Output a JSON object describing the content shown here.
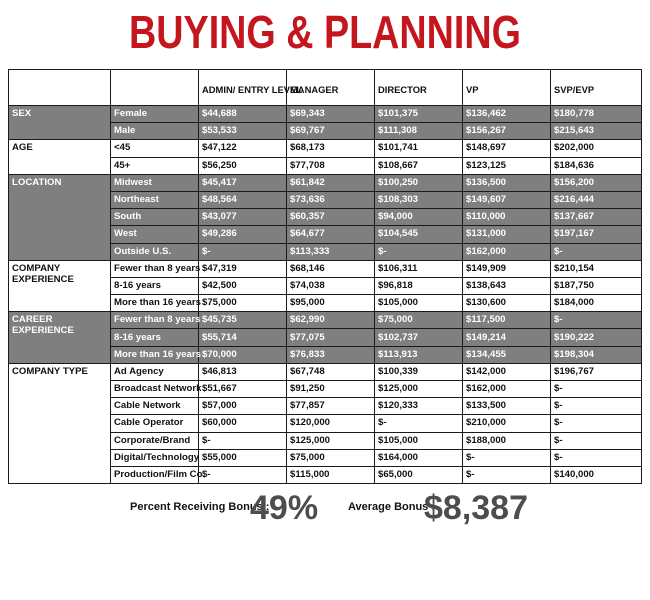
{
  "title": "BUYING & PLANNING",
  "columns": [
    "ADMIN/ ENTRY LEVEL",
    "MANAGER",
    "DIRECTOR",
    "VP",
    "SVP/EVP"
  ],
  "groups": [
    {
      "category": "SEX",
      "shaded": true,
      "rows": [
        {
          "label": "Female",
          "values": [
            "$44,688",
            "$69,343",
            "$101,375",
            "$136,462",
            "$180,778"
          ]
        },
        {
          "label": "Male",
          "values": [
            "$53,533",
            "$69,767",
            "$111,308",
            "$156,267",
            "$215,643"
          ]
        }
      ]
    },
    {
      "category": "AGE",
      "shaded": false,
      "rows": [
        {
          "label": "<45",
          "values": [
            "$47,122",
            "$68,173",
            "$101,741",
            "$148,697",
            "$202,000"
          ]
        },
        {
          "label": "45+",
          "values": [
            "$56,250",
            "$77,708",
            "$108,667",
            "$123,125",
            "$184,636"
          ]
        }
      ]
    },
    {
      "category": "LOCATION",
      "shaded": true,
      "rows": [
        {
          "label": "Midwest",
          "values": [
            "$45,417",
            "$61,842",
            "$100,250",
            "$136,500",
            "$156,200"
          ]
        },
        {
          "label": "Northeast",
          "values": [
            "$48,564",
            "$73,636",
            "$108,303",
            "$149,607",
            "$216,444"
          ]
        },
        {
          "label": "South",
          "values": [
            "$43,077",
            "$60,357",
            "$94,000",
            "$110,000",
            "$137,667"
          ]
        },
        {
          "label": "West",
          "values": [
            "$49,286",
            "$64,677",
            "$104,545",
            "$131,000",
            "$197,167"
          ]
        },
        {
          "label": "Outside U.S.",
          "values": [
            "$-",
            "$113,333",
            "$-",
            "$162,000",
            "$-"
          ]
        }
      ]
    },
    {
      "category": "COMPANY EXPERIENCE",
      "shaded": false,
      "rows": [
        {
          "label": "Fewer than 8 years",
          "values": [
            "$47,319",
            "$68,146",
            "$106,311",
            "$149,909",
            "$210,154"
          ]
        },
        {
          "label": "8-16 years",
          "values": [
            "$42,500",
            "$74,038",
            "$96,818",
            "$138,643",
            "$187,750"
          ]
        },
        {
          "label": "More than 16 years",
          "values": [
            "$75,000",
            "$95,000",
            "$105,000",
            "$130,600",
            "$184,000"
          ]
        }
      ]
    },
    {
      "category": "CAREER EXPERIENCE",
      "shaded": true,
      "rows": [
        {
          "label": "Fewer than 8 years",
          "values": [
            "$45,735",
            "$62,990",
            "$75,000",
            "$117,500",
            "$-"
          ]
        },
        {
          "label": "8-16 years",
          "values": [
            "$55,714",
            "$77,075",
            "$102,737",
            "$149,214",
            "$190,222"
          ]
        },
        {
          "label": "More than 16 years",
          "values": [
            "$70,000",
            "$76,833",
            "$113,913",
            "$134,455",
            "$198,304"
          ]
        }
      ]
    },
    {
      "category": "COMPANY TYPE",
      "shaded": false,
      "rows": [
        {
          "label": "Ad Agency",
          "values": [
            "$46,813",
            "$67,748",
            "$100,339",
            "$142,000",
            "$196,767"
          ]
        },
        {
          "label": "Broadcast Network",
          "values": [
            "$51,667",
            "$91,250",
            "$125,000",
            "$162,000",
            "$-"
          ]
        },
        {
          "label": "Cable Network",
          "values": [
            "$57,000",
            "$77,857",
            "$120,333",
            "$133,500",
            "$-"
          ]
        },
        {
          "label": "Cable Operator",
          "values": [
            "$60,000",
            "$120,000",
            "$-",
            "$210,000",
            "$-"
          ]
        },
        {
          "label": "Corporate/Brand",
          "values": [
            "$-",
            "$125,000",
            "$105,000",
            "$188,000",
            "$-"
          ]
        },
        {
          "label": "Digital/Technology",
          "values": [
            "$55,000",
            "$75,000",
            "$164,000",
            "$-",
            "$-"
          ]
        },
        {
          "label": "Production/Film Co.",
          "values": [
            "$-",
            "$115,000",
            "$65,000",
            "$-",
            "$140,000"
          ]
        }
      ]
    }
  ],
  "bonus": {
    "percent_label": "Percent Receiving Bonus :",
    "percent_value": "49%",
    "average_label": "Average Bonus :",
    "average_value": "$8,387"
  },
  "colors": {
    "title": "#c4161c",
    "shade": "#7f7f7f",
    "bonus_value": "#4d4d4d"
  }
}
